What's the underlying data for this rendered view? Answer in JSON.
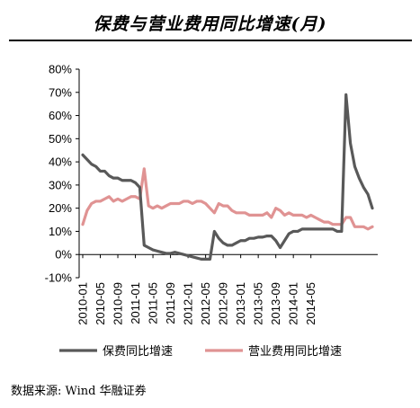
{
  "title": "保费与营业费用同比增速(月)",
  "source": "数据来源: Wind 华融证券",
  "chart_data": {
    "type": "line",
    "ylim": [
      -0.1,
      0.8
    ],
    "yticks": [
      "-10%",
      "0%",
      "10%",
      "20%",
      "30%",
      "40%",
      "50%",
      "60%",
      "70%",
      "80%"
    ],
    "xticks": [
      "2010-01",
      "2010-05",
      "2010-09",
      "2011-01",
      "2011-05",
      "2011-09",
      "2012-01",
      "2012-05",
      "2012-09",
      "2013-01",
      "2013-05",
      "2013-09",
      "2014-01",
      "2014-05"
    ],
    "grid": false,
    "legend_position": "bottom",
    "series": [
      {
        "name": "保费同比增速",
        "color": "#595959",
        "values": [
          0.43,
          0.41,
          0.39,
          0.38,
          0.36,
          0.36,
          0.34,
          0.33,
          0.33,
          0.32,
          0.32,
          0.32,
          0.31,
          0.29,
          0.04,
          0.03,
          0.02,
          0.015,
          0.01,
          0.005,
          0.005,
          0.01,
          0.005,
          0.0,
          -0.005,
          -0.01,
          -0.015,
          -0.02,
          -0.02,
          -0.02,
          0.1,
          0.07,
          0.05,
          0.04,
          0.04,
          0.05,
          0.06,
          0.06,
          0.07,
          0.07,
          0.075,
          0.075,
          0.08,
          0.08,
          0.06,
          0.03,
          0.06,
          0.09,
          0.1,
          0.1,
          0.11,
          0.11,
          0.11,
          0.11,
          0.11,
          0.11,
          0.11,
          0.11,
          0.1,
          0.1,
          0.69,
          0.48,
          0.38,
          0.33,
          0.29,
          0.26,
          0.2
        ]
      },
      {
        "name": "营业费用同比增速",
        "color": "#e09393",
        "values": [
          0.13,
          0.19,
          0.22,
          0.23,
          0.23,
          0.24,
          0.25,
          0.23,
          0.24,
          0.23,
          0.24,
          0.25,
          0.25,
          0.24,
          0.37,
          0.21,
          0.2,
          0.21,
          0.2,
          0.21,
          0.22,
          0.22,
          0.22,
          0.23,
          0.23,
          0.22,
          0.23,
          0.23,
          0.22,
          0.2,
          0.18,
          0.22,
          0.21,
          0.21,
          0.19,
          0.18,
          0.18,
          0.18,
          0.17,
          0.17,
          0.17,
          0.17,
          0.18,
          0.16,
          0.2,
          0.19,
          0.17,
          0.18,
          0.17,
          0.17,
          0.17,
          0.16,
          0.17,
          0.16,
          0.15,
          0.14,
          0.14,
          0.13,
          0.13,
          0.13,
          0.16,
          0.16,
          0.12,
          0.12,
          0.12,
          0.11,
          0.12
        ]
      }
    ]
  }
}
